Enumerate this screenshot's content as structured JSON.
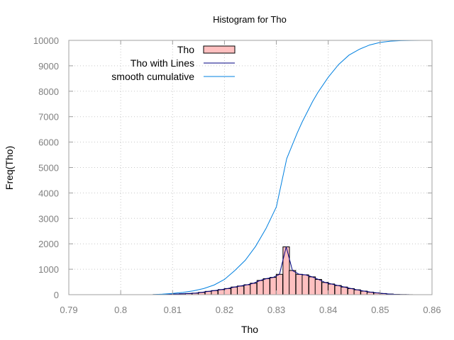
{
  "chart_data": {
    "type": "bar",
    "title": "Histogram for Tho",
    "xlabel": "Tho",
    "ylabel": "Freq(Tho)",
    "xlim": [
      0.79,
      0.86
    ],
    "ylim": [
      0,
      10000
    ],
    "x_ticks": [
      "0.79",
      "0.8",
      "0.81",
      "0.82",
      "0.83",
      "0.84",
      "0.85",
      "0.86"
    ],
    "y_ticks": [
      "0",
      "1000",
      "2000",
      "3000",
      "4000",
      "5000",
      "6000",
      "7000",
      "8000",
      "9000",
      "10000"
    ],
    "grid": true,
    "legend_position": "top-left",
    "bin_width": 0.00125,
    "x": [
      0.8069,
      0.8081,
      0.8094,
      0.8106,
      0.8119,
      0.8131,
      0.8144,
      0.8156,
      0.8169,
      0.8181,
      0.8194,
      0.8206,
      0.8219,
      0.8231,
      0.8244,
      0.8256,
      0.8269,
      0.8281,
      0.8294,
      0.8306,
      0.8319,
      0.8331,
      0.8344,
      0.8356,
      0.8369,
      0.8381,
      0.8394,
      0.8406,
      0.8419,
      0.8431,
      0.8444,
      0.8456,
      0.8469,
      0.8481,
      0.8494,
      0.8506,
      0.8519,
      0.8531,
      0.8544,
      0.8556
    ],
    "series": [
      {
        "name": "Tho",
        "kind": "bars",
        "color": "#ffc0c0",
        "values": [
          5,
          10,
          15,
          25,
          35,
          45,
          60,
          90,
          130,
          160,
          200,
          240,
          300,
          340,
          390,
          450,
          560,
          630,
          680,
          800,
          1880,
          950,
          800,
          780,
          700,
          600,
          480,
          420,
          360,
          300,
          240,
          190,
          140,
          100,
          70,
          45,
          25,
          12,
          5,
          2
        ]
      },
      {
        "name": "Tho with Lines",
        "kind": "line",
        "color": "#000080",
        "values": [
          5,
          10,
          15,
          25,
          35,
          45,
          60,
          90,
          130,
          160,
          200,
          240,
          300,
          340,
          390,
          450,
          560,
          630,
          680,
          800,
          1880,
          950,
          800,
          780,
          700,
          600,
          480,
          420,
          360,
          300,
          240,
          190,
          140,
          100,
          70,
          45,
          25,
          12,
          5,
          2
        ]
      },
      {
        "name": "smooth cumulative",
        "kind": "line",
        "color": "#0080e0",
        "x": [
          0.806,
          0.808,
          0.81,
          0.812,
          0.814,
          0.816,
          0.818,
          0.82,
          0.822,
          0.824,
          0.826,
          0.828,
          0.83,
          0.831,
          0.832,
          0.833,
          0.834,
          0.835,
          0.836,
          0.837,
          0.838,
          0.84,
          0.842,
          0.844,
          0.846,
          0.848,
          0.85,
          0.852,
          0.854,
          0.856,
          0.858,
          0.86
        ],
        "values": [
          0,
          20,
          50,
          90,
          150,
          240,
          380,
          600,
          950,
          1350,
          1900,
          2600,
          3450,
          4400,
          5350,
          5850,
          6350,
          6800,
          7200,
          7600,
          7950,
          8550,
          9050,
          9420,
          9650,
          9820,
          9920,
          9970,
          9990,
          9998,
          10000,
          10000
        ]
      }
    ]
  }
}
